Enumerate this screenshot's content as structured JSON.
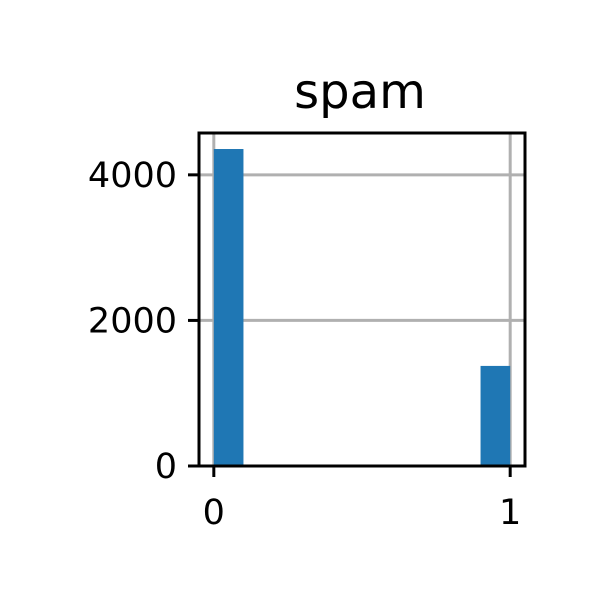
{
  "chart_data": {
    "type": "bar",
    "title": "spam",
    "xlabel": "",
    "ylabel": "",
    "grid": true,
    "xlim": [
      -0.05,
      1.05
    ],
    "ylim": [
      0,
      4575
    ],
    "xticks": [
      0,
      1
    ],
    "xtick_labels": [
      "0",
      "1"
    ],
    "yticks": [
      0,
      2000,
      4000
    ],
    "ytick_labels": [
      "0",
      "2000",
      "4000"
    ],
    "bins": [
      {
        "x0": 0.0,
        "x1": 0.1,
        "value": 4355
      },
      {
        "x0": 0.9,
        "x1": 1.0,
        "value": 1375
      }
    ],
    "bar_color": "#1f77b4",
    "grid_color": "#b0b0b0"
  }
}
